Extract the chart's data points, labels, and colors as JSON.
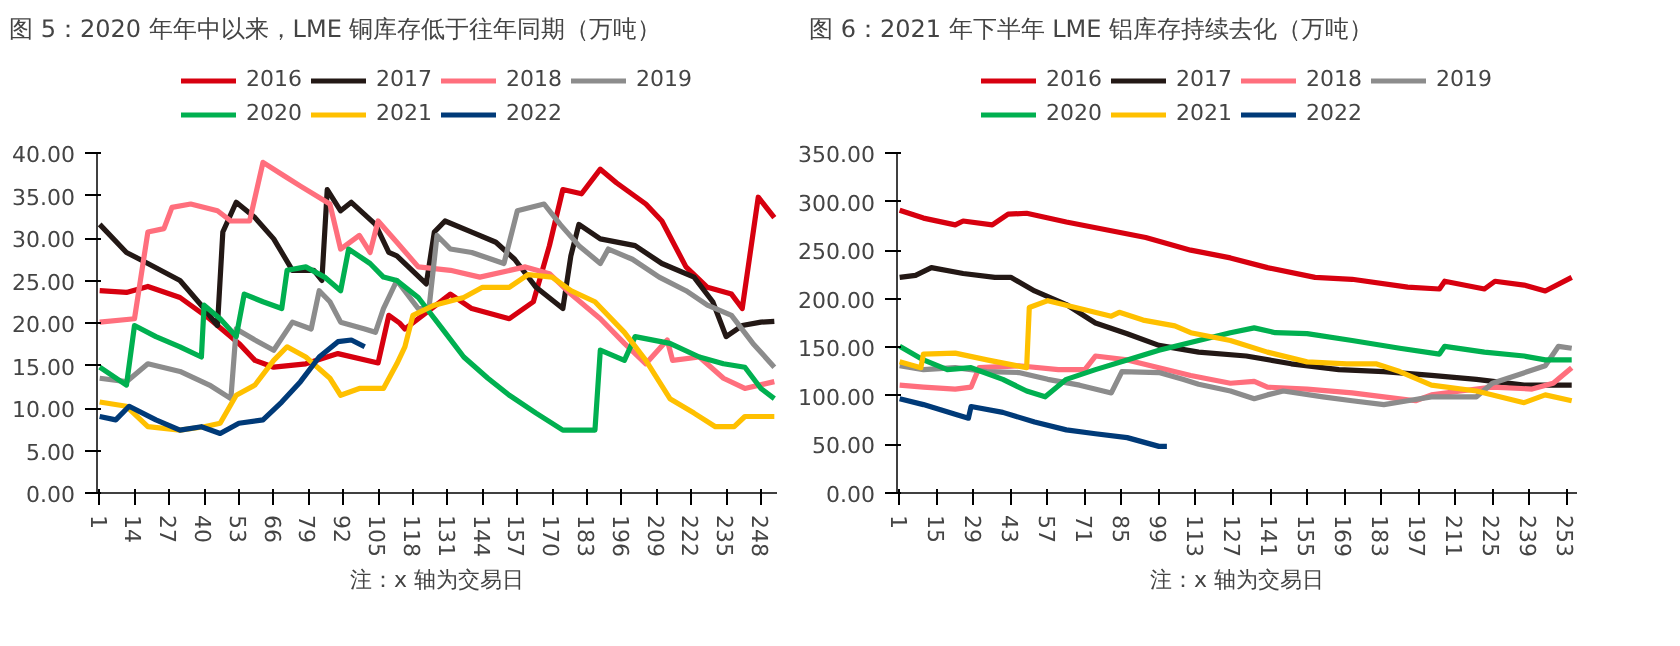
{
  "chart_data": [
    {
      "type": "line",
      "title": "图 5：2020 年年中以来，LME 铜库存低于往年同期（万吨）",
      "annotations": [
        "注：x 轴为交易日"
      ],
      "legend": "top",
      "grid": false,
      "xlim": [
        0,
        254
      ],
      "xticks": [
        1,
        14,
        27,
        40,
        53,
        66,
        79,
        92,
        105,
        118,
        131,
        144,
        157,
        170,
        183,
        196,
        209,
        222,
        235,
        248
      ],
      "ylim": [
        0,
        40
      ],
      "yticks": [
        {
          "value": 0,
          "label": "0.00"
        },
        {
          "value": 5,
          "label": "5.00"
        },
        {
          "value": 10,
          "label": "10.00"
        },
        {
          "value": 15,
          "label": "15.00"
        },
        {
          "value": 20,
          "label": "20.00"
        },
        {
          "value": 25,
          "label": "25.00"
        },
        {
          "value": 30,
          "label": "30.00"
        },
        {
          "value": 35,
          "label": "35.00"
        },
        {
          "value": 40,
          "label": "40.00"
        }
      ],
      "series": [
        {
          "name": "2016",
          "color": "#d7000f",
          "x": [
            1,
            11,
            19,
            31,
            42,
            53,
            59,
            66,
            78,
            90,
            105,
            109,
            113,
            115,
            132,
            140,
            154,
            163,
            169,
            174,
            181,
            188,
            194,
            205,
            211,
            220,
            228,
            237,
            241,
            247,
            253
          ],
          "values": [
            23.8,
            23.6,
            24.3,
            23,
            20.5,
            17.6,
            15.6,
            14.8,
            15.2,
            16.4,
            15.3,
            20.9,
            20,
            19.3,
            23.4,
            21.7,
            20.5,
            22.5,
            29.1,
            35.7,
            35.2,
            38.1,
            36.5,
            34,
            32,
            26.6,
            24.2,
            23.4,
            21.7,
            34.8,
            32.4
          ]
        },
        {
          "name": "2017",
          "color": "#231815",
          "x": [
            1,
            11,
            19,
            31,
            40,
            45,
            47,
            52,
            59,
            66,
            73,
            81,
            84,
            86,
            91,
            95,
            104,
            109,
            112,
            123,
            126,
            130,
            140,
            149,
            156,
            164,
            174,
            177,
            180,
            188,
            201,
            211,
            223,
            230,
            235,
            241,
            248,
            253
          ],
          "values": [
            31.6,
            28.3,
            27,
            25,
            21.7,
            19.7,
            30.7,
            34.2,
            32.4,
            29.9,
            26.2,
            26.2,
            25,
            35.7,
            33.2,
            34.2,
            31.6,
            28.3,
            27.9,
            24.6,
            30.7,
            32,
            30.7,
            29.5,
            27.5,
            24.2,
            21.7,
            27.9,
            31.6,
            29.9,
            29.1,
            27,
            25.4,
            22.5,
            18.4,
            19.7,
            20.1,
            20.2
          ]
        },
        {
          "name": "2018",
          "color": "#ff6f7d",
          "x": [
            1,
            14,
            19,
            25,
            28,
            35,
            45,
            50,
            57,
            62,
            70,
            76,
            87,
            91,
            98,
            102,
            105,
            112,
            120,
            132,
            143,
            160,
            169,
            177,
            188,
            197,
            205,
            213,
            215,
            225,
            234,
            242,
            253
          ],
          "values": [
            20.1,
            20.5,
            30.7,
            31.1,
            33.6,
            34,
            33.2,
            32,
            32,
            38.9,
            37.3,
            36.1,
            34,
            28.7,
            30.3,
            28.3,
            32,
            29.5,
            26.6,
            26.2,
            25.4,
            26.6,
            25.8,
            23.4,
            20.5,
            17.6,
            15.2,
            18,
            15.6,
            16,
            13.5,
            12.3,
            13.1
          ]
        },
        {
          "name": "2019",
          "color": "#8c8c8c",
          "x": [
            1,
            11,
            19,
            31,
            42,
            50,
            52,
            59,
            66,
            73,
            80,
            83,
            87,
            91,
            100,
            104,
            107,
            112,
            120,
            124,
            127,
            132,
            140,
            152,
            157,
            167,
            173,
            180,
            188,
            191,
            200,
            210,
            220,
            228,
            237,
            245,
            253
          ],
          "values": [
            13.5,
            13.1,
            15.2,
            14.3,
            12.7,
            11.1,
            19.3,
            18,
            16.8,
            20.1,
            19.3,
            23.8,
            22.5,
            20.1,
            19.3,
            18.9,
            21.7,
            25,
            21.7,
            21.7,
            30.3,
            28.7,
            28.3,
            27,
            33.2,
            34,
            31.6,
            29.1,
            27,
            28.7,
            27.5,
            25.4,
            23.8,
            22.1,
            20.9,
            17.6,
            14.8
          ]
        },
        {
          "name": "2020",
          "color": "#00b050",
          "x": [
            1,
            11,
            14,
            22,
            31,
            39,
            40,
            46,
            52,
            55,
            62,
            69,
            71,
            78,
            85,
            91,
            94,
            102,
            107,
            112,
            120,
            129,
            137,
            146,
            154,
            164,
            174,
            186,
            188,
            197,
            201,
            214,
            225,
            234,
            242,
            248,
            253
          ],
          "values": [
            14.8,
            12.7,
            19.7,
            18.4,
            17.2,
            16,
            22.1,
            20.5,
            18.4,
            23.4,
            22.5,
            21.7,
            26.2,
            26.6,
            25.4,
            23.8,
            28.7,
            27,
            25.4,
            25,
            23,
            19.3,
            16,
            13.5,
            11.5,
            9.4,
            7.4,
            7.4,
            16.8,
            15.6,
            18.4,
            17.6,
            16,
            15.2,
            14.8,
            12.3,
            11.1
          ]
        },
        {
          "name": "2021",
          "color": "#ffc000",
          "x": [
            1,
            11,
            19,
            31,
            40,
            46,
            52,
            59,
            66,
            71,
            78,
            87,
            91,
            98,
            107,
            112,
            115,
            118,
            126,
            137,
            144,
            154,
            161,
            170,
            177,
            186,
            197,
            205,
            214,
            223,
            231,
            238,
            242,
            253
          ],
          "values": [
            10.7,
            10.2,
            7.8,
            7.4,
            7.8,
            8.2,
            11.5,
            12.7,
            15.6,
            17.2,
            16,
            13.5,
            11.5,
            12.3,
            12.3,
            15.2,
            17.2,
            20.9,
            22.1,
            23,
            24.2,
            24.2,
            25.7,
            25.4,
            23.8,
            22.5,
            18.9,
            15.6,
            11.1,
            9.4,
            7.8,
            7.8,
            9,
            9
          ]
        },
        {
          "name": "2022",
          "color": "#003a78",
          "x": [
            1,
            7,
            12,
            22,
            31,
            39,
            46,
            53,
            62,
            69,
            76,
            83,
            90,
            95,
            100
          ],
          "values": [
            9,
            8.6,
            10.2,
            8.6,
            7.4,
            7.8,
            7,
            8.2,
            8.6,
            10.7,
            13.1,
            16,
            17.8,
            18,
            17.2
          ]
        }
      ]
    },
    {
      "type": "line",
      "title": "图 6：2021 年下半年 LME 铝库存持续去化（万吨）",
      "annotations": [
        "注：x 轴为交易日"
      ],
      "legend": "top",
      "grid": false,
      "xlim": [
        0,
        257
      ],
      "xticks": [
        1,
        15,
        29,
        43,
        57,
        71,
        85,
        99,
        113,
        127,
        141,
        155,
        169,
        183,
        197,
        211,
        225,
        239,
        253
      ],
      "ylim": [
        0,
        350
      ],
      "yticks": [
        {
          "value": 0,
          "label": "0.00"
        },
        {
          "value": 50,
          "label": "50.00"
        },
        {
          "value": 100,
          "label": "100.00"
        },
        {
          "value": 150,
          "label": "150.00"
        },
        {
          "value": 200,
          "label": "200.00"
        },
        {
          "value": 250,
          "label": "250.00"
        },
        {
          "value": 300,
          "label": "300.00"
        },
        {
          "value": 350,
          "label": "350.00"
        }
      ],
      "series": [
        {
          "name": "2016",
          "color": "#d7000f",
          "x": [
            1,
            10,
            22,
            25,
            36,
            42,
            49,
            64,
            79,
            94,
            111,
            126,
            140,
            158,
            172,
            193,
            205,
            207,
            222,
            226,
            237,
            245,
            255
          ],
          "values": [
            291,
            283,
            276,
            280,
            276,
            287,
            288,
            279,
            271,
            263,
            250,
            242,
            232,
            222,
            220,
            212,
            210,
            218,
            210,
            218,
            214,
            208,
            222
          ]
        },
        {
          "name": "2017",
          "color": "#231815",
          "x": [
            1,
            7,
            13,
            25,
            37,
            43,
            52,
            64,
            75,
            87,
            99,
            114,
            132,
            149,
            167,
            184,
            202,
            219,
            237,
            255
          ],
          "values": [
            222,
            224,
            232,
            226,
            222,
            222,
            208,
            194,
            175,
            164,
            152,
            145,
            141,
            133,
            127,
            125,
            121,
            117,
            111,
            111
          ]
        },
        {
          "name": "2018",
          "color": "#ff6f7d",
          "x": [
            1,
            10,
            22,
            28,
            31,
            46,
            61,
            71,
            75,
            87,
            99,
            111,
            126,
            135,
            140,
            155,
            172,
            184,
            196,
            202,
            213,
            225,
            240,
            248,
            255
          ],
          "values": [
            111,
            109,
            107,
            109,
            129,
            131,
            127,
            127,
            141,
            137,
            129,
            121,
            113,
            115,
            109,
            107,
            103,
            99,
            95,
            101,
            105,
            109,
            107,
            113,
            129
          ]
        },
        {
          "name": "2019",
          "color": "#8c8c8c",
          "x": [
            1,
            10,
            22,
            34,
            46,
            57,
            69,
            81,
            85,
            99,
            108,
            114,
            126,
            135,
            140,
            146,
            161,
            172,
            184,
            193,
            202,
            219,
            225,
            234,
            245,
            250,
            255
          ],
          "values": [
            131,
            127,
            129,
            125,
            124,
            117,
            111,
            103,
            125,
            124,
            117,
            112,
            105,
            97,
            101,
            105,
            99,
            95,
            91,
            95,
            99,
            99,
            113,
            121,
            131,
            151,
            149
          ]
        },
        {
          "name": "2020",
          "color": "#00b050",
          "x": [
            1,
            10,
            19,
            28,
            40,
            49,
            56,
            64,
            75,
            87,
            99,
            114,
            126,
            135,
            143,
            155,
            172,
            190,
            205,
            207,
            222,
            237,
            245,
            255
          ],
          "values": [
            151,
            137,
            127,
            129,
            117,
            105,
            99,
            117,
            127,
            137,
            147,
            157,
            165,
            170,
            165,
            164,
            157,
            149,
            143,
            151,
            145,
            141,
            137,
            137
          ]
        },
        {
          "name": "2021",
          "color": "#ffc000",
          "x": [
            1,
            9,
            10,
            22,
            34,
            49,
            50,
            57,
            69,
            81,
            84,
            93,
            105,
            111,
            126,
            140,
            155,
            170,
            181,
            190,
            202,
            219,
            237,
            245,
            255
          ],
          "values": [
            135,
            129,
            143,
            144,
            137,
            129,
            191,
            198,
            190,
            182,
            186,
            178,
            172,
            165,
            157,
            145,
            135,
            133,
            133,
            125,
            111,
            105,
            93,
            101,
            95
          ]
        },
        {
          "name": "2022",
          "color": "#003a78",
          "x": [
            1,
            10,
            22,
            27,
            28,
            40,
            52,
            64,
            75,
            87,
            99,
            102
          ],
          "values": [
            97,
            91,
            81,
            77,
            89,
            83,
            73,
            65,
            61,
            57,
            48,
            48
          ]
        }
      ]
    }
  ]
}
